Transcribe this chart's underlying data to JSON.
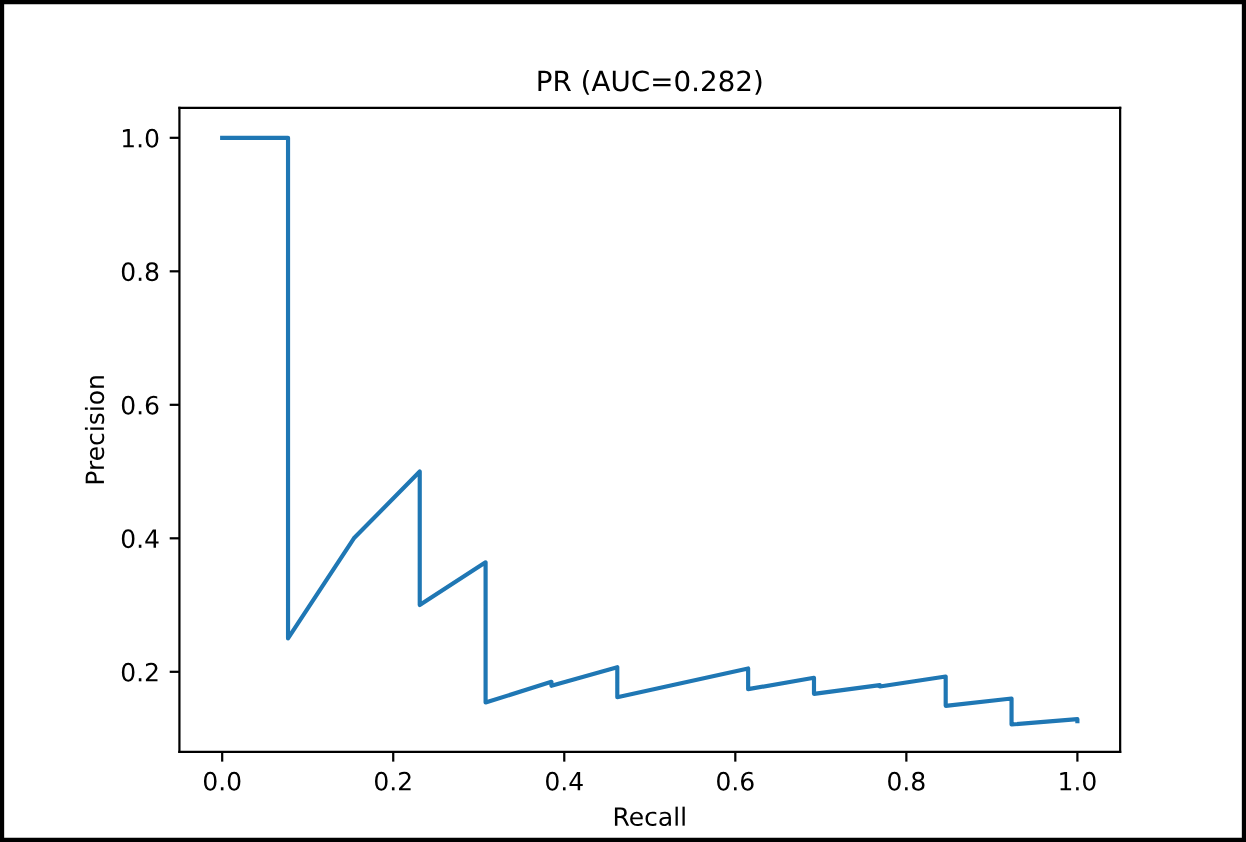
{
  "chart_data": {
    "type": "line",
    "title": "PR (AUC=0.282)",
    "xlabel": "Recall",
    "ylabel": "Precision",
    "x": [
      0,
      0.077,
      0.077,
      0.154,
      0.231,
      0.231,
      0.308,
      0.308,
      0.385,
      0.385,
      0.462,
      0.462,
      0.615,
      0.615,
      0.692,
      0.692,
      0.769,
      0.769,
      0.846,
      0.846,
      0.923,
      0.923,
      1.0,
      1.0
    ],
    "series": [
      {
        "color": "#1f77b4",
        "values": [
          1.0,
          1.0,
          0.25,
          0.4,
          0.5,
          0.3,
          0.364,
          0.154,
          0.185,
          0.179,
          0.207,
          0.162,
          0.205,
          0.174,
          0.191,
          0.167,
          0.18,
          0.178,
          0.193,
          0.149,
          0.16,
          0.121,
          0.129,
          0.126
        ]
      }
    ],
    "xlim": [
      -0.05,
      1.05
    ],
    "ylim": [
      0.08,
      1.045
    ],
    "xticks": [
      {
        "value": 0,
        "label": "0.0"
      },
      0.2,
      0.4,
      0.6,
      0.8,
      {
        "value": 1,
        "label": "1.0"
      }
    ],
    "yticks": [
      0.2,
      0.4,
      0.6,
      0.8,
      {
        "value": 1,
        "label": "1.0"
      }
    ],
    "grid": false,
    "legend": false,
    "marker": "none",
    "line_style": "solid"
  }
}
